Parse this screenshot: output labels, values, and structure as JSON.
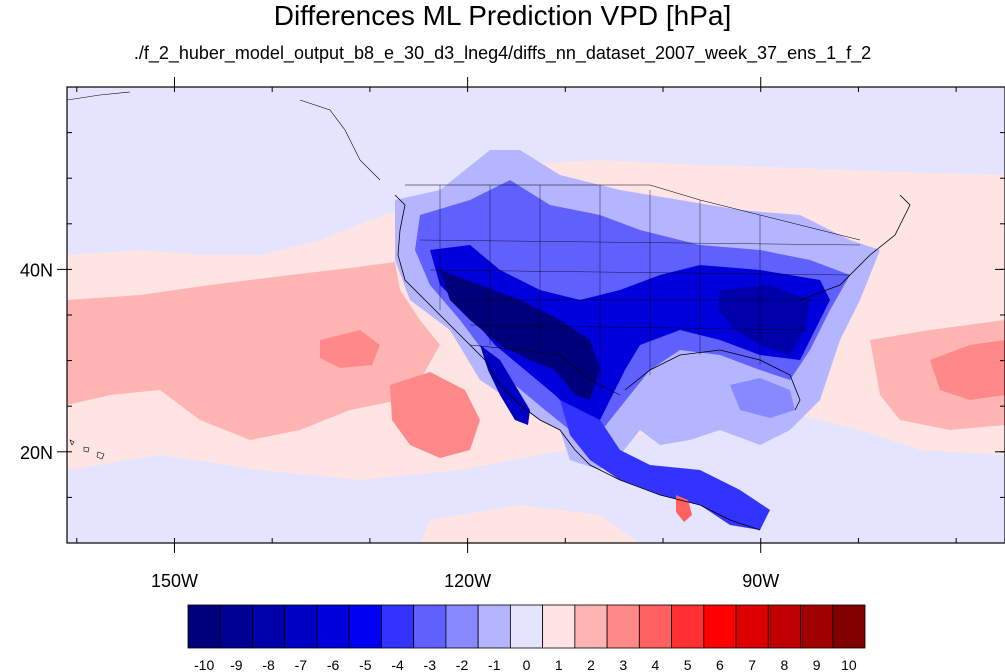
{
  "title": "Differences ML Prediction VPD [hPa]",
  "subtitle": "./f_2_huber_model_output_b8_e_30_d3_lneg4/diffs_nn_dataset_2007_week_37_ens_1_f_2",
  "map": {
    "lon_range": [
      -161,
      -65
    ],
    "lat_range": [
      10,
      60
    ],
    "x_ticks": [
      {
        "lon": -150,
        "label": "150W"
      },
      {
        "lon": -120,
        "label": "120W"
      },
      {
        "lon": -90,
        "label": "90W"
      }
    ],
    "y_ticks": [
      {
        "lat": 40,
        "label": "40N"
      },
      {
        "lat": 20,
        "label": "20N"
      }
    ]
  },
  "colorbar": {
    "labels": [
      "-10",
      "-9",
      "-8",
      "-7",
      "-6",
      "-5",
      "-4",
      "-3",
      "-2",
      "-1",
      "0",
      "1",
      "2",
      "3",
      "4",
      "5",
      "6",
      "7",
      "8",
      "9",
      "10"
    ],
    "colors": [
      "#00007a",
      "#000092",
      "#0000aa",
      "#0000c4",
      "#0000dc",
      "#0000f4",
      "#3333ff",
      "#6060ff",
      "#8888ff",
      "#b4b4ff",
      "#e4e4ff",
      "#ffe4e4",
      "#ffb4b4",
      "#ff8888",
      "#ff6060",
      "#ff3030",
      "#ff0000",
      "#dc0000",
      "#c00000",
      "#a00000",
      "#800000"
    ]
  }
}
